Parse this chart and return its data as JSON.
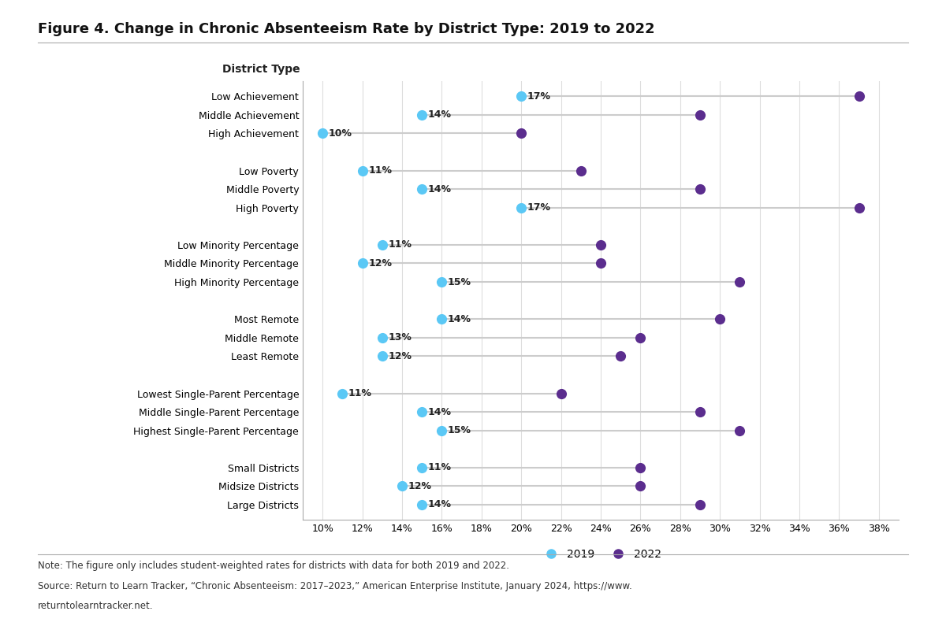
{
  "title": "Figure 4. Change in Chronic Absenteeism Rate by District Type: 2019 to 2022",
  "note_line1": "Note: The figure only includes student-weighted rates for districts with data for both 2019 and 2022.",
  "note_line2": "Source: Return to Learn Tracker, “Chronic Absenteeism: 2017–2023,” American Enterprise Institute, January 2024, https://www.",
  "note_line3": "returntolearntracker.net.",
  "x_ticks": [
    10,
    12,
    14,
    16,
    18,
    20,
    22,
    24,
    26,
    28,
    30,
    32,
    34,
    36,
    38
  ],
  "xlim": [
    9,
    39
  ],
  "categories": [
    "Low Achievement",
    "Middle Achievement",
    "High Achievement",
    "",
    "Low Poverty",
    "Middle Poverty",
    "High Poverty",
    "",
    "Low Minority Percentage",
    "Middle Minority Percentage",
    "High Minority Percentage",
    "",
    "Most Remote",
    "Middle Remote",
    "Least Remote",
    "",
    "Lowest Single-Parent Percentage",
    "Middle Single-Parent Percentage",
    "Highest Single-Parent Percentage",
    "",
    "Small Districts",
    "Midsize Districts",
    "Large Districts"
  ],
  "val_2019": [
    20,
    15,
    10,
    null,
    12,
    15,
    20,
    null,
    13,
    12,
    16,
    null,
    16,
    13,
    13,
    null,
    11,
    15,
    16,
    null,
    15,
    14,
    15
  ],
  "val_2022": [
    37,
    29,
    20,
    null,
    23,
    29,
    37,
    null,
    24,
    24,
    31,
    null,
    30,
    26,
    25,
    null,
    22,
    29,
    31,
    null,
    26,
    26,
    29
  ],
  "change": [
    "17%",
    "14%",
    "10%",
    null,
    "11%",
    "14%",
    "17%",
    null,
    "11%",
    "12%",
    "15%",
    null,
    "14%",
    "13%",
    "12%",
    null,
    "11%",
    "14%",
    "15%",
    null,
    "11%",
    "12%",
    "14%"
  ],
  "dot_color_2019": "#5BC8F5",
  "dot_color_2022": "#5B2D8E",
  "line_color": "#CCCCCC",
  "bg_color": "#FFFFFF",
  "plot_bg_color": "#FFFFFF",
  "grid_color": "#DDDDDD",
  "legend_2019": "2019",
  "legend_2022": "2022",
  "label_fontsize": 9,
  "tick_fontsize": 9,
  "dot_size": 90
}
